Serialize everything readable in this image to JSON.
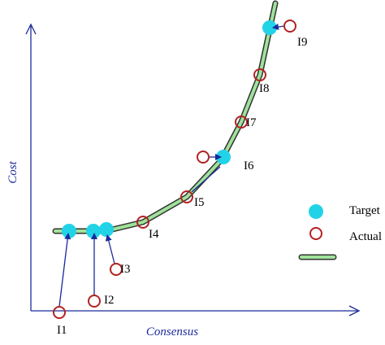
{
  "axes": {
    "y_label": "Cost",
    "x_label": "Consensus"
  },
  "points": [
    {
      "label": "I1"
    },
    {
      "label": "I2"
    },
    {
      "label": "I3"
    },
    {
      "label": "I4"
    },
    {
      "label": "I5"
    },
    {
      "label": "I6"
    },
    {
      "label": "I7"
    },
    {
      "label": "I8"
    },
    {
      "label": "I9"
    }
  ],
  "legend": {
    "target": "Target",
    "actual": "Actual"
  }
}
